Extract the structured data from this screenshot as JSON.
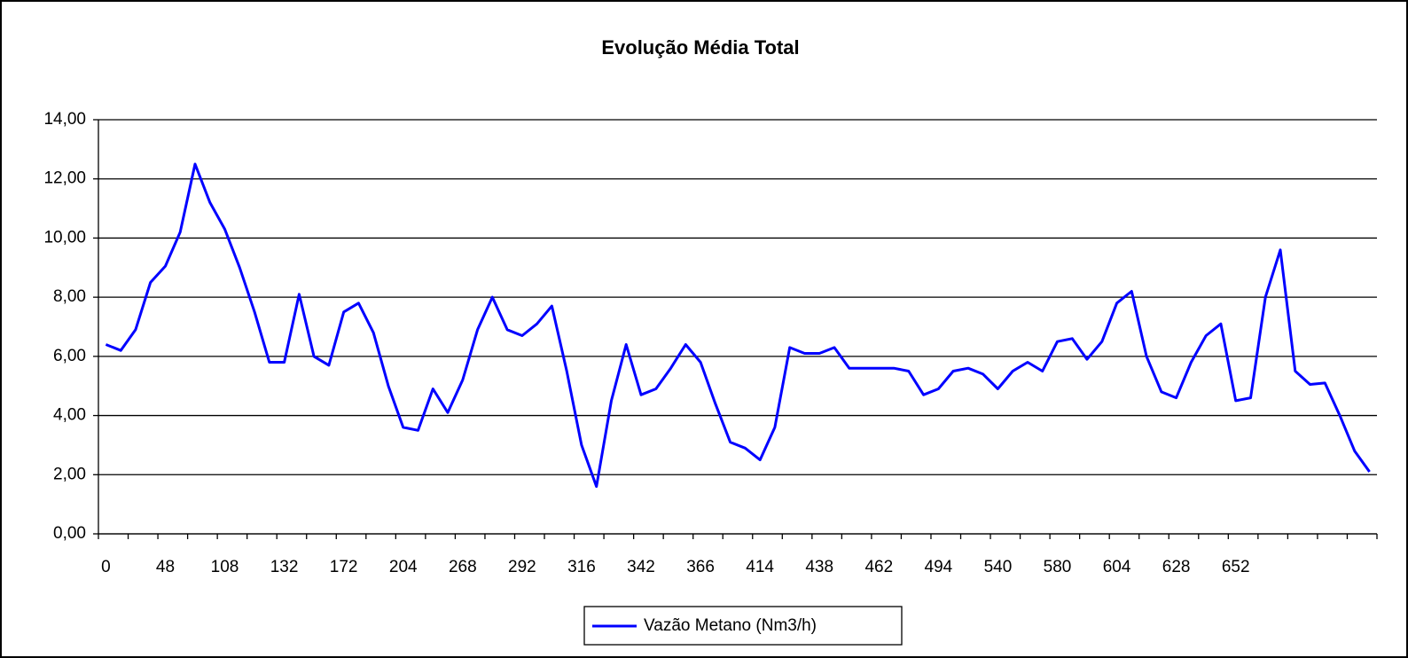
{
  "chart_data": {
    "type": "line",
    "title": "Evolução Média Total",
    "categories": [
      "0",
      null,
      null,
      null,
      "48",
      null,
      null,
      null,
      "108",
      null,
      null,
      null,
      "132",
      null,
      null,
      null,
      "172",
      null,
      null,
      null,
      "204",
      null,
      null,
      null,
      "268",
      null,
      null,
      null,
      "292",
      null,
      null,
      null,
      "316",
      null,
      null,
      null,
      "342",
      null,
      null,
      null,
      "366",
      null,
      null,
      null,
      "414",
      null,
      null,
      null,
      "438",
      null,
      null,
      null,
      "462",
      null,
      null,
      null,
      "494",
      null,
      null,
      null,
      "540",
      null,
      null,
      null,
      "580",
      null,
      null,
      null,
      "604",
      null,
      null,
      null,
      "628",
      null,
      null,
      null,
      "652",
      null,
      null,
      null,
      null,
      null,
      null,
      null,
      null,
      null
    ],
    "series": [
      {
        "name": "Vazão Metano (Nm3/h)",
        "color": "#0000ff",
        "values": [
          6.4,
          6.2,
          6.9,
          8.5,
          9.05,
          10.2,
          12.5,
          11.2,
          10.3,
          9.0,
          7.5,
          5.8,
          5.8,
          8.1,
          6.0,
          5.7,
          7.5,
          7.8,
          6.8,
          5.0,
          3.6,
          3.5,
          4.9,
          4.1,
          5.2,
          6.9,
          8.0,
          6.9,
          6.7,
          7.1,
          7.7,
          5.5,
          3.0,
          1.6,
          4.5,
          6.4,
          4.7,
          4.9,
          5.6,
          6.4,
          5.8,
          4.4,
          3.1,
          2.9,
          2.5,
          3.6,
          6.3,
          6.1,
          6.1,
          6.3,
          5.6,
          5.6,
          5.6,
          5.6,
          5.5,
          4.7,
          4.9,
          5.5,
          5.6,
          5.4,
          4.9,
          5.5,
          5.8,
          5.5,
          6.5,
          6.6,
          5.9,
          6.5,
          7.8,
          8.2,
          6.0,
          4.8,
          4.6,
          5.8,
          6.7,
          7.1,
          4.5,
          4.6,
          8.0,
          9.6,
          5.5,
          5.05,
          5.1,
          4.0,
          2.8,
          2.1
        ]
      }
    ],
    "ylim": [
      0,
      14
    ],
    "yticks": [
      {
        "value": 0,
        "label": "0,00"
      },
      {
        "value": 2,
        "label": "2,00"
      },
      {
        "value": 4,
        "label": "4,00"
      },
      {
        "value": 6,
        "label": "6,00"
      },
      {
        "value": 8,
        "label": "8,00"
      },
      {
        "value": 10,
        "label": "10,00"
      },
      {
        "value": 12,
        "label": "12,00"
      },
      {
        "value": 14,
        "label": "14,00"
      }
    ],
    "grid": true,
    "legend": "bottom"
  }
}
